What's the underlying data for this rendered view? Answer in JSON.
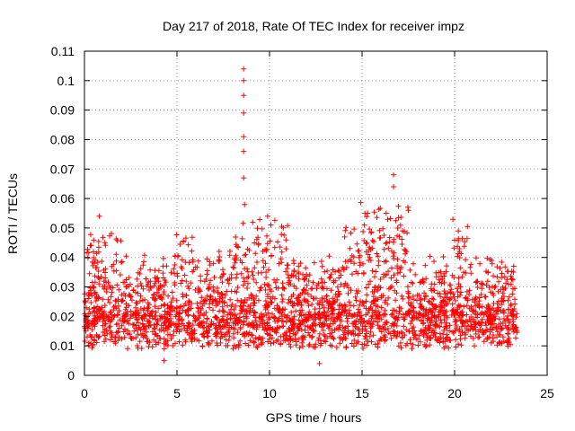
{
  "chart_data": {
    "type": "scatter",
    "title": "Day 217 of 2018, Rate Of TEC Index for receiver impz",
    "xlabel": "GPS time / hours",
    "ylabel": "ROTI / TECUs",
    "xlim": [
      0,
      25
    ],
    "ylim": [
      0,
      0.11
    ],
    "xticks": [
      0,
      5,
      10,
      15,
      20,
      25
    ],
    "xtick_labels": [
      "0",
      "5",
      "10",
      "15",
      "20",
      "25"
    ],
    "yticks": [
      0,
      0.01,
      0.02,
      0.03,
      0.04,
      0.05,
      0.06,
      0.07,
      0.08,
      0.09,
      0.1,
      0.11
    ],
    "ytick_labels": [
      "0",
      "0.01",
      "0.02",
      "0.03",
      "0.04",
      "0.05",
      "0.06",
      "0.07",
      "0.08",
      "0.09",
      "0.1",
      "0.11"
    ],
    "grid": true,
    "marker": "+",
    "series_color": "#ff0000",
    "x_range_of_data": [
      0.0,
      23.4
    ],
    "baseline_band": [
      0.008,
      0.03
    ],
    "peaks": [
      {
        "x": 0.8,
        "y": 0.054
      },
      {
        "x": 8.6,
        "y": 0.104
      },
      {
        "x": 8.6,
        "y": 0.1
      },
      {
        "x": 8.6,
        "y": 0.095
      },
      {
        "x": 8.6,
        "y": 0.089
      },
      {
        "x": 8.6,
        "y": 0.081
      },
      {
        "x": 8.6,
        "y": 0.076
      },
      {
        "x": 8.6,
        "y": 0.067
      },
      {
        "x": 8.65,
        "y": 0.058
      },
      {
        "x": 9.9,
        "y": 0.054
      },
      {
        "x": 15.3,
        "y": 0.055
      },
      {
        "x": 16.3,
        "y": 0.055
      },
      {
        "x": 16.7,
        "y": 0.068
      },
      {
        "x": 16.7,
        "y": 0.064
      },
      {
        "x": 17.5,
        "y": 0.056
      },
      {
        "x": 20.2,
        "y": 0.049
      },
      {
        "x": 4.3,
        "y": 0.005
      },
      {
        "x": 12.7,
        "y": 0.004
      }
    ]
  }
}
